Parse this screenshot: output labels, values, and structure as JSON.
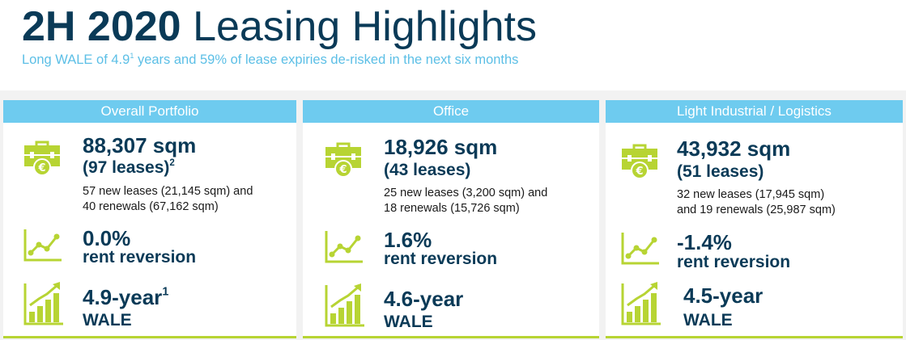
{
  "header": {
    "title_year": "2H 2020",
    "title_text": "Leasing Highlights",
    "subtitle_before": "Long WALE of 4.9",
    "subtitle_sup": "1",
    "subtitle_after": " years and 59% of lease expiries de-risked in the next six months"
  },
  "colors": {
    "navy": "#0a3a57",
    "header_blue": "#6ecbef",
    "lime": "#b7d433",
    "subtitle_blue": "#5cbfe6"
  },
  "icons": [
    "briefcase-euro-icon",
    "trend-line-icon",
    "bar-growth-icon"
  ],
  "panels": [
    {
      "name": "Overall Portfolio",
      "area": "88,307 sqm",
      "leases": "(97 leases)",
      "leases_sup": "2",
      "detail_line1": "57 new leases (21,145 sqm) and",
      "detail_line2": "40 renewals (67,162 sqm)",
      "reversion_value": "0.0%",
      "reversion_label": "rent reversion",
      "wale_value": "4.9-year",
      "wale_sup": "1",
      "wale_label": "WALE"
    },
    {
      "name": "Office",
      "area": "18,926 sqm",
      "leases": "(43 leases)",
      "leases_sup": "",
      "detail_line1": "25 new leases (3,200 sqm) and",
      "detail_line2": "18 renewals (15,726 sqm)",
      "reversion_value": "1.6%",
      "reversion_label": "rent reversion",
      "wale_value": "4.6-year",
      "wale_sup": "",
      "wale_label": "WALE"
    },
    {
      "name": "Light Industrial / Logistics",
      "area": "43,932 sqm",
      "leases": "(51 leases)",
      "leases_sup": "",
      "detail_line1": "32 new leases (17,945 sqm)",
      "detail_line2": "and 19 renewals (25,987 sqm)",
      "reversion_value": "-1.4%",
      "reversion_label": "rent reversion",
      "wale_value": "4.5-year",
      "wale_sup": "",
      "wale_label": "WALE"
    }
  ]
}
